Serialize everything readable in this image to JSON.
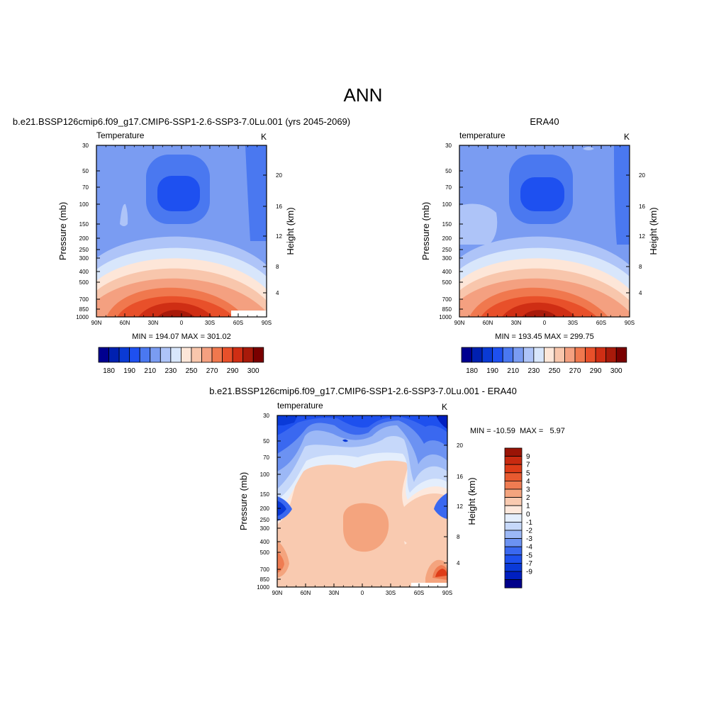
{
  "page_title": "ANN",
  "colors": {
    "abs_palette": [
      "#00008f",
      "#0020b0",
      "#0a3ad4",
      "#1e50f0",
      "#4a78f0",
      "#7a9cf2",
      "#aec4f8",
      "#d8e6fb",
      "#fde6d8",
      "#f8c6ac",
      "#f4a080",
      "#f0784e",
      "#e8502a",
      "#cf2e14",
      "#a81a0a",
      "#7a0000"
    ],
    "diff_palette": [
      "#00008a",
      "#001fc0",
      "#0a3ad8",
      "#1e50ee",
      "#3a68f0",
      "#6c92f2",
      "#9cb8f6",
      "#c6d8fa",
      "#e4eefc",
      "#fde8dc",
      "#f9cab0",
      "#f4a47e",
      "#ef7c52",
      "#e85a30",
      "#de3c18",
      "#c82a10",
      "#9a1406"
    ]
  },
  "chart_data": [
    {
      "type": "heatmap",
      "title": "b.e21.BSSP126cmip6.f09_g17.CMIP6-SSP1-2.6-SSP3-7.0Lu.001 (yrs 2045-2069)",
      "left_label": "Temperature",
      "units": "K",
      "ylabel": "Pressure (mb)",
      "ylabel_right": "Height (km)",
      "x_ticks": [
        "90N",
        "60N",
        "30N",
        "0",
        "30S",
        "60S",
        "90S"
      ],
      "y_ticks": [
        "30",
        "50",
        "70",
        "100",
        "150",
        "200",
        "250",
        "300",
        "400",
        "500",
        "700",
        "850",
        "1000"
      ],
      "y_right_ticks": [
        "20",
        "16",
        "12",
        "8",
        "4"
      ],
      "min": 194.07,
      "max": 301.02,
      "stats_text": "MIN = 194.07  MAX = 301.02",
      "colorbar": {
        "orientation": "horizontal",
        "labels": [
          "180",
          "190",
          "210",
          "230",
          "250",
          "270",
          "290",
          "300"
        ]
      }
    },
    {
      "type": "heatmap",
      "title": "ERA40",
      "left_label": "temperature",
      "units": "K",
      "ylabel": "Pressure (mb)",
      "ylabel_right": "Height (km)",
      "x_ticks": [
        "90N",
        "60N",
        "30N",
        "0",
        "30S",
        "60S",
        "90S"
      ],
      "y_ticks": [
        "30",
        "50",
        "70",
        "100",
        "150",
        "200",
        "250",
        "300",
        "400",
        "500",
        "700",
        "850",
        "1000"
      ],
      "y_right_ticks": [
        "20",
        "16",
        "12",
        "8",
        "4"
      ],
      "min": 193.45,
      "max": 299.75,
      "stats_text": "MIN = 193.45  MAX = 299.75",
      "colorbar": {
        "orientation": "horizontal",
        "labels": [
          "180",
          "190",
          "210",
          "230",
          "250",
          "270",
          "290",
          "300"
        ]
      }
    },
    {
      "type": "heatmap",
      "title": "b.e21.BSSP126cmip6.f09_g17.CMIP6-SSP1-2.6-SSP3-7.0Lu.001 - ERA40",
      "left_label": "temperature",
      "units": "K",
      "ylabel": "Pressure (mb)",
      "ylabel_right": "Height (km)",
      "x_ticks": [
        "90N",
        "60N",
        "30N",
        "0",
        "30S",
        "60S",
        "90S"
      ],
      "y_ticks": [
        "30",
        "50",
        "70",
        "100",
        "150",
        "200",
        "250",
        "300",
        "400",
        "500",
        "700",
        "850",
        "1000"
      ],
      "y_right_ticks": [
        "20",
        "16",
        "12",
        "8",
        "4"
      ],
      "min": -10.59,
      "max": 5.97,
      "stats_text": "MIN = -10.59  MAX =   5.97",
      "colorbar": {
        "orientation": "vertical",
        "labels": [
          "9",
          "7",
          "5",
          "4",
          "3",
          "2",
          "1",
          "0",
          "-1",
          "-2",
          "-3",
          "-4",
          "-5",
          "-7",
          "-9"
        ]
      }
    }
  ]
}
